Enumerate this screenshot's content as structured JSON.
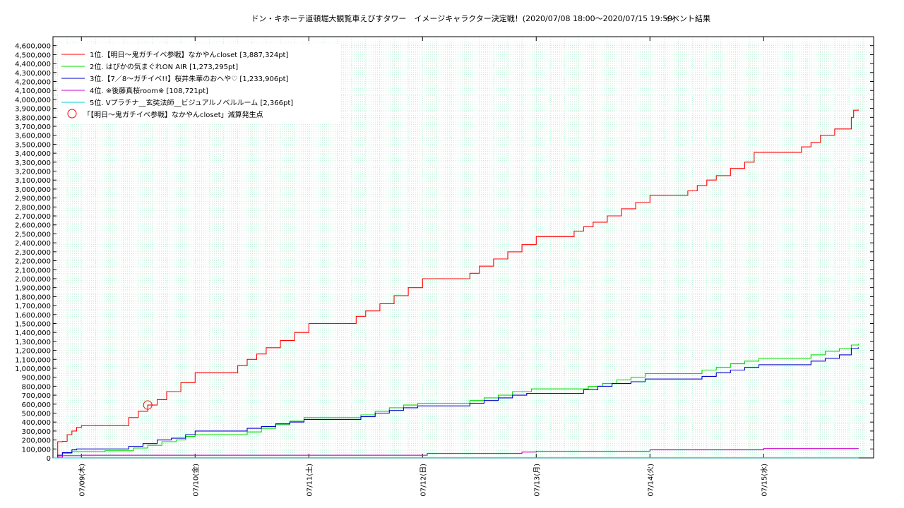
{
  "chart_data": {
    "type": "line",
    "title": "ドン・キホーテ道頓堀大観覧車えびすタワー　イメージキャラクター決定戦！(2020/07/08 18:00～2020/07/15 19:59)",
    "subtitle": "イベント結果",
    "xlabel": "",
    "ylabel": "",
    "ylim": [
      0,
      4700000
    ],
    "y_ticks": [
      "0",
      "100,000",
      "200,000",
      "300,000",
      "400,000",
      "500,000",
      "600,000",
      "700,000",
      "800,000",
      "900,000",
      "1,000,000",
      "1,100,000",
      "1,200,000",
      "1,300,000",
      "1,400,000",
      "1,500,000",
      "1,600,000",
      "1,700,000",
      "1,800,000",
      "1,900,000",
      "2,000,000",
      "2,100,000",
      "2,200,000",
      "2,300,000",
      "2,400,000",
      "2,500,000",
      "2,600,000",
      "2,700,000",
      "2,800,000",
      "2,900,000",
      "3,000,000",
      "3,100,000",
      "3,200,000",
      "3,300,000",
      "3,400,000",
      "3,500,000",
      "3,600,000",
      "3,700,000",
      "3,800,000",
      "3,900,000",
      "4,000,000",
      "4,100,000",
      "4,200,000",
      "4,300,000",
      "4,400,000",
      "4,500,000",
      "4,600,000"
    ],
    "x_ticks": [
      "07/09(木)",
      "07/10(金)",
      "07/11(土)",
      "07/12(日)",
      "07/13(月)",
      "07/14(火)",
      "07/15(水)"
    ],
    "grid": true,
    "legend_position": "top-left",
    "series": [
      {
        "name": "1位.【明日〜鬼ガチイベ参戦】なかやんcloset [3,887,324pt]",
        "color": "#ff0000",
        "points": [
          [
            "2020-07-08 18:00",
            0
          ],
          [
            "2020-07-08 19:00",
            180000
          ],
          [
            "2020-07-08 20:00",
            185000
          ],
          [
            "2020-07-08 21:00",
            260000
          ],
          [
            "2020-07-08 22:00",
            300000
          ],
          [
            "2020-07-08 23:00",
            340000
          ],
          [
            "2020-07-09 00:00",
            360000
          ],
          [
            "2020-07-09 09:00",
            360000
          ],
          [
            "2020-07-09 10:00",
            450000
          ],
          [
            "2020-07-09 12:00",
            520000
          ],
          [
            "2020-07-09 14:00",
            590000
          ],
          [
            "2020-07-09 16:00",
            650000
          ],
          [
            "2020-07-09 18:00",
            740000
          ],
          [
            "2020-07-09 21:00",
            840000
          ],
          [
            "2020-07-10 00:00",
            950000
          ],
          [
            "2020-07-10 07:00",
            950000
          ],
          [
            "2020-07-10 09:00",
            1030000
          ],
          [
            "2020-07-10 11:00",
            1100000
          ],
          [
            "2020-07-10 13:00",
            1160000
          ],
          [
            "2020-07-10 15:00",
            1230000
          ],
          [
            "2020-07-10 18:00",
            1310000
          ],
          [
            "2020-07-10 21:00",
            1400000
          ],
          [
            "2020-07-11 00:00",
            1500000
          ],
          [
            "2020-07-11 09:00",
            1500000
          ],
          [
            "2020-07-11 10:00",
            1580000
          ],
          [
            "2020-07-11 12:00",
            1640000
          ],
          [
            "2020-07-11 15:00",
            1720000
          ],
          [
            "2020-07-11 18:00",
            1810000
          ],
          [
            "2020-07-11 21:00",
            1900000
          ],
          [
            "2020-07-12 00:00",
            2000000
          ],
          [
            "2020-07-12 09:00",
            2000000
          ],
          [
            "2020-07-12 10:00",
            2060000
          ],
          [
            "2020-07-12 12:00",
            2140000
          ],
          [
            "2020-07-12 15:00",
            2220000
          ],
          [
            "2020-07-12 18:00",
            2300000
          ],
          [
            "2020-07-12 21:00",
            2380000
          ],
          [
            "2020-07-13 00:00",
            2470000
          ],
          [
            "2020-07-13 07:00",
            2470000
          ],
          [
            "2020-07-13 08:00",
            2530000
          ],
          [
            "2020-07-13 10:00",
            2580000
          ],
          [
            "2020-07-13 12:00",
            2630000
          ],
          [
            "2020-07-13 15:00",
            2700000
          ],
          [
            "2020-07-13 18:00",
            2780000
          ],
          [
            "2020-07-13 21:00",
            2850000
          ],
          [
            "2020-07-14 00:00",
            2930000
          ],
          [
            "2020-07-14 07:00",
            2930000
          ],
          [
            "2020-07-14 08:00",
            2980000
          ],
          [
            "2020-07-14 10:00",
            3040000
          ],
          [
            "2020-07-14 12:00",
            3100000
          ],
          [
            "2020-07-14 14:00",
            3150000
          ],
          [
            "2020-07-14 17:00",
            3230000
          ],
          [
            "2020-07-14 20:00",
            3300000
          ],
          [
            "2020-07-14 22:00",
            3410000
          ],
          [
            "2020-07-15 07:00",
            3410000
          ],
          [
            "2020-07-15 08:00",
            3470000
          ],
          [
            "2020-07-15 10:00",
            3520000
          ],
          [
            "2020-07-15 12:00",
            3600000
          ],
          [
            "2020-07-15 15:00",
            3670000
          ],
          [
            "2020-07-15 18:00",
            3670000
          ],
          [
            "2020-07-15 18:30",
            3800000
          ],
          [
            "2020-07-15 19:00",
            3880000
          ],
          [
            "2020-07-15 19:59",
            3887324
          ]
        ]
      },
      {
        "name": "2位. はぴかの気まぐれON AIR [1,273,295pt]",
        "color": "#00dd00",
        "points": [
          [
            "2020-07-08 18:00",
            0
          ],
          [
            "2020-07-08 20:00",
            50000
          ],
          [
            "2020-07-08 22:00",
            70000
          ],
          [
            "2020-07-09 02:00",
            70000
          ],
          [
            "2020-07-09 05:00",
            80000
          ],
          [
            "2020-07-09 08:00",
            80000
          ],
          [
            "2020-07-09 11:00",
            110000
          ],
          [
            "2020-07-09 14:00",
            140000
          ],
          [
            "2020-07-09 17:00",
            180000
          ],
          [
            "2020-07-09 20:00",
            200000
          ],
          [
            "2020-07-09 22:00",
            240000
          ],
          [
            "2020-07-10 00:00",
            260000
          ],
          [
            "2020-07-10 09:00",
            260000
          ],
          [
            "2020-07-10 11:00",
            290000
          ],
          [
            "2020-07-10 14:00",
            330000
          ],
          [
            "2020-07-10 17:00",
            370000
          ],
          [
            "2020-07-10 20:00",
            410000
          ],
          [
            "2020-07-10 23:00",
            450000
          ],
          [
            "2020-07-11 09:00",
            450000
          ],
          [
            "2020-07-11 11:00",
            480000
          ],
          [
            "2020-07-11 14:00",
            520000
          ],
          [
            "2020-07-11 17:00",
            560000
          ],
          [
            "2020-07-11 20:00",
            590000
          ],
          [
            "2020-07-11 23:00",
            610000
          ],
          [
            "2020-07-12 07:00",
            610000
          ],
          [
            "2020-07-12 10:00",
            640000
          ],
          [
            "2020-07-12 13:00",
            670000
          ],
          [
            "2020-07-12 16:00",
            700000
          ],
          [
            "2020-07-12 19:00",
            740000
          ],
          [
            "2020-07-12 23:00",
            770000
          ],
          [
            "2020-07-13 09:00",
            770000
          ],
          [
            "2020-07-13 11:00",
            800000
          ],
          [
            "2020-07-13 14:00",
            830000
          ],
          [
            "2020-07-13 17:00",
            870000
          ],
          [
            "2020-07-13 20:00",
            900000
          ],
          [
            "2020-07-13 23:00",
            940000
          ],
          [
            "2020-07-14 09:00",
            940000
          ],
          [
            "2020-07-14 11:00",
            980000
          ],
          [
            "2020-07-14 14:00",
            1010000
          ],
          [
            "2020-07-14 17:00",
            1050000
          ],
          [
            "2020-07-14 20:00",
            1080000
          ],
          [
            "2020-07-14 23:00",
            1110000
          ],
          [
            "2020-07-15 08:00",
            1110000
          ],
          [
            "2020-07-15 10:00",
            1150000
          ],
          [
            "2020-07-15 13:00",
            1190000
          ],
          [
            "2020-07-15 16:00",
            1220000
          ],
          [
            "2020-07-15 18:30",
            1260000
          ],
          [
            "2020-07-15 19:59",
            1273295
          ]
        ]
      },
      {
        "name": "3位.【7／8〜ガチイベ!!】桜井朱華のおへや♡ [1,233,906pt]",
        "color": "#0000cc",
        "points": [
          [
            "2020-07-08 18:00",
            0
          ],
          [
            "2020-07-08 19:00",
            30000
          ],
          [
            "2020-07-08 20:00",
            60000
          ],
          [
            "2020-07-08 22:00",
            90000
          ],
          [
            "2020-07-08 23:00",
            100000
          ],
          [
            "2020-07-09 08:00",
            100000
          ],
          [
            "2020-07-09 10:00",
            130000
          ],
          [
            "2020-07-09 13:00",
            160000
          ],
          [
            "2020-07-09 16:00",
            200000
          ],
          [
            "2020-07-09 19:00",
            220000
          ],
          [
            "2020-07-09 22:00",
            260000
          ],
          [
            "2020-07-10 00:00",
            300000
          ],
          [
            "2020-07-10 09:00",
            300000
          ],
          [
            "2020-07-10 11:00",
            330000
          ],
          [
            "2020-07-10 14:00",
            350000
          ],
          [
            "2020-07-10 17:00",
            380000
          ],
          [
            "2020-07-10 20:00",
            400000
          ],
          [
            "2020-07-10 23:00",
            430000
          ],
          [
            "2020-07-11 09:00",
            430000
          ],
          [
            "2020-07-11 11:00",
            460000
          ],
          [
            "2020-07-11 14:00",
            500000
          ],
          [
            "2020-07-11 17:00",
            530000
          ],
          [
            "2020-07-11 20:00",
            560000
          ],
          [
            "2020-07-11 23:00",
            580000
          ],
          [
            "2020-07-12 08:00",
            580000
          ],
          [
            "2020-07-12 10:00",
            610000
          ],
          [
            "2020-07-12 13:00",
            640000
          ],
          [
            "2020-07-12 16:00",
            670000
          ],
          [
            "2020-07-12 19:00",
            700000
          ],
          [
            "2020-07-12 22:00",
            720000
          ],
          [
            "2020-07-13 08:00",
            720000
          ],
          [
            "2020-07-13 10:00",
            760000
          ],
          [
            "2020-07-13 13:00",
            800000
          ],
          [
            "2020-07-13 16:00",
            830000
          ],
          [
            "2020-07-13 20:00",
            850000
          ],
          [
            "2020-07-13 23:00",
            880000
          ],
          [
            "2020-07-14 09:00",
            880000
          ],
          [
            "2020-07-14 11:00",
            910000
          ],
          [
            "2020-07-14 14:00",
            950000
          ],
          [
            "2020-07-14 17:00",
            980000
          ],
          [
            "2020-07-14 20:00",
            1010000
          ],
          [
            "2020-07-14 23:00",
            1040000
          ],
          [
            "2020-07-15 08:00",
            1040000
          ],
          [
            "2020-07-15 10:00",
            1080000
          ],
          [
            "2020-07-15 13:00",
            1110000
          ],
          [
            "2020-07-15 16:00",
            1150000
          ],
          [
            "2020-07-15 18:30",
            1220000
          ],
          [
            "2020-07-15 19:59",
            1233906
          ]
        ]
      },
      {
        "name": "4位. ※後藤真桜room※ [108,721pt]",
        "color": "#cc00cc",
        "points": [
          [
            "2020-07-08 18:00",
            0
          ],
          [
            "2020-07-08 19:00",
            10000
          ],
          [
            "2020-07-08 20:00",
            25000
          ],
          [
            "2020-07-09 00:00",
            30000
          ],
          [
            "2020-07-12 00:00",
            30000
          ],
          [
            "2020-07-12 01:00",
            50000
          ],
          [
            "2020-07-12 20:00",
            50000
          ],
          [
            "2020-07-12 21:00",
            65000
          ],
          [
            "2020-07-13 00:00",
            75000
          ],
          [
            "2020-07-13 23:00",
            75000
          ],
          [
            "2020-07-14 00:00",
            90000
          ],
          [
            "2020-07-14 23:00",
            90000
          ],
          [
            "2020-07-15 00:00",
            105000
          ],
          [
            "2020-07-15 19:59",
            108721
          ]
        ]
      },
      {
        "name": "5位. Vプラチナ__玄奘法師__ビジュアルノベルルーム [2,366pt]",
        "color": "#00cccc",
        "points": [
          [
            "2020-07-08 18:00",
            0
          ],
          [
            "2020-07-09 00:00",
            1500
          ],
          [
            "2020-07-15 19:59",
            2366
          ]
        ]
      }
    ],
    "annotations": [
      {
        "type": "circle-marker",
        "label": "「【明日〜鬼ガチイベ参戦】なかやんcloset」減算発生点",
        "x": "2020-07-09 14:00",
        "y": 590000,
        "color": "#ff0000"
      }
    ]
  }
}
